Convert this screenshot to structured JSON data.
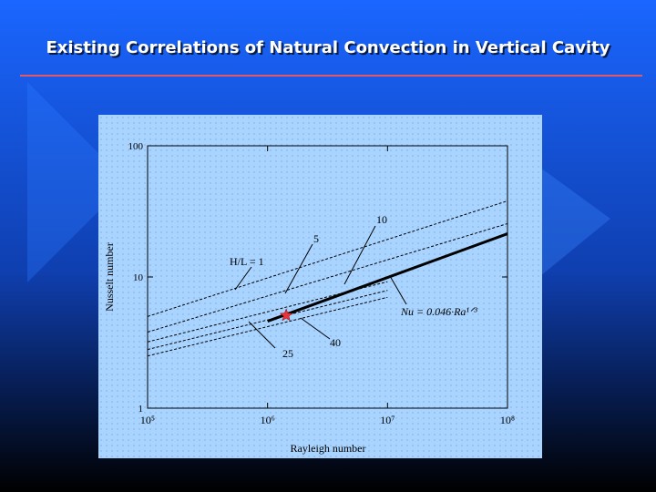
{
  "header": {
    "title": "Existing Correlations of Natural Convection in Vertical Cavity"
  },
  "chart_data": {
    "type": "line",
    "xlabel": "Rayleigh number",
    "ylabel": "Nusselt number",
    "xscale": "log",
    "yscale": "log",
    "xlim": [
      100000,
      100000000
    ],
    "ylim": [
      1,
      100
    ],
    "xticks": [
      {
        "value": 100000,
        "label": "10⁵"
      },
      {
        "value": 1000000,
        "label": "10⁶"
      },
      {
        "value": 10000000,
        "label": "10⁷"
      },
      {
        "value": 100000000,
        "label": "10⁸"
      }
    ],
    "yticks": [
      1,
      10,
      100
    ],
    "series": [
      {
        "name": "H/L = 1",
        "color": "#000000",
        "style": "dashed",
        "x": [
          100000,
          100000000
        ],
        "values": [
          5,
          38
        ]
      },
      {
        "name": "5",
        "color": "#000000",
        "style": "dashed",
        "x": [
          100000,
          100000000
        ],
        "values": [
          3.8,
          25.5
        ]
      },
      {
        "name": "10",
        "color": "#000000",
        "style": "dashed",
        "x": [
          100000,
          10000000
        ],
        "values": [
          3.2,
          9.2
        ]
      },
      {
        "name": "25",
        "color": "#000000",
        "style": "dashed",
        "x": [
          100000,
          10000000
        ],
        "values": [
          2.8,
          7.9
        ]
      },
      {
        "name": "40",
        "color": "#000000",
        "style": "dashed",
        "x": [
          100000,
          10000000
        ],
        "values": [
          2.5,
          7.0
        ]
      },
      {
        "name": "Nu = 0.046·Ra¹ᐟ³",
        "color": "#000000",
        "style": "solid",
        "x": [
          1000000,
          10000000,
          100000000
        ],
        "values": [
          4.6,
          9.91,
          21.35
        ]
      }
    ],
    "points": {
      "color": "#e8333a",
      "x": [
        1430000
      ],
      "values": [
        5.1
      ]
    }
  }
}
